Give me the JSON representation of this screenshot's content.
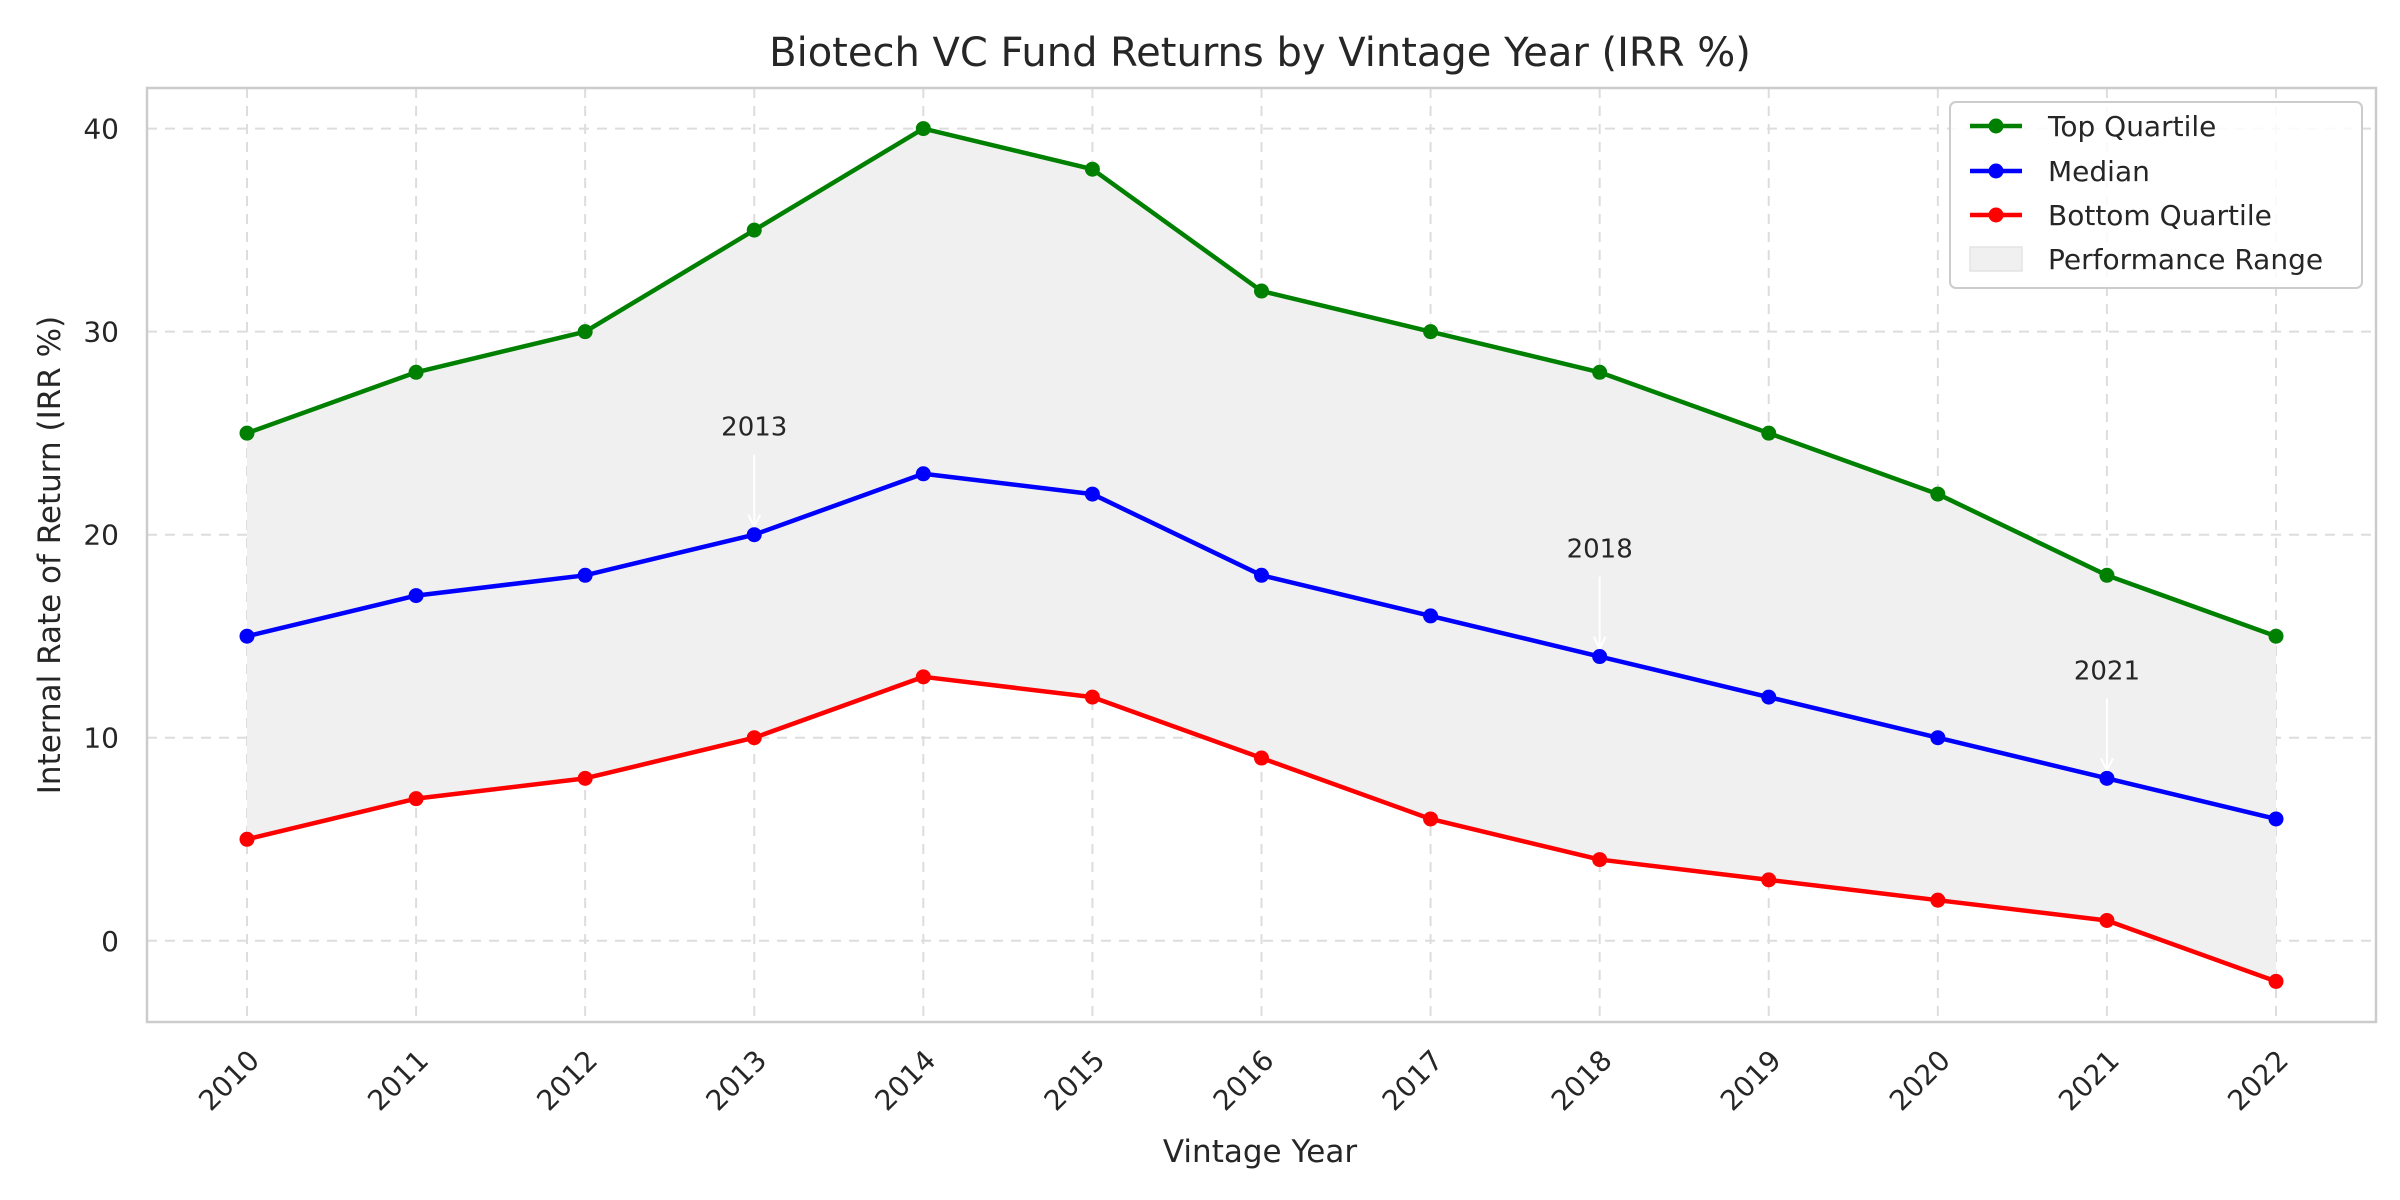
{
  "chart_data": {
    "type": "line",
    "title": "Biotech VC Fund Returns by Vintage Year (IRR %)",
    "xlabel": "Vintage Year",
    "ylabel": "Internal Rate of Return (IRR %)",
    "categories": [
      "2010",
      "2011",
      "2012",
      "2013",
      "2014",
      "2015",
      "2016",
      "2017",
      "2018",
      "2019",
      "2020",
      "2021",
      "2022"
    ],
    "ylim": [
      -4,
      42
    ],
    "yticks": [
      0,
      10,
      20,
      30,
      40
    ],
    "grid": true,
    "legend_position": "top-right",
    "series": [
      {
        "name": "Top Quartile",
        "color": "#008000",
        "values": [
          25,
          28,
          30,
          35,
          40,
          38,
          32,
          30,
          28,
          25,
          22,
          18,
          15
        ]
      },
      {
        "name": "Median",
        "color": "#0000ff",
        "values": [
          15,
          17,
          18,
          20,
          23,
          22,
          18,
          16,
          14,
          12,
          10,
          8,
          6
        ]
      },
      {
        "name": "Bottom Quartile",
        "color": "#ff0000",
        "values": [
          5,
          7,
          8,
          10,
          13,
          12,
          9,
          6,
          4,
          3,
          2,
          1,
          -2
        ]
      }
    ],
    "band": {
      "name": "Performance Range",
      "color": "#f0f0f0",
      "from_series": "Bottom Quartile",
      "to_series": "Top Quartile"
    },
    "annotations": [
      {
        "text": "2013",
        "x": "2013",
        "y": 20
      },
      {
        "text": "2018",
        "x": "2018",
        "y": 14
      },
      {
        "text": "2021",
        "x": "2021",
        "y": 8
      }
    ]
  }
}
